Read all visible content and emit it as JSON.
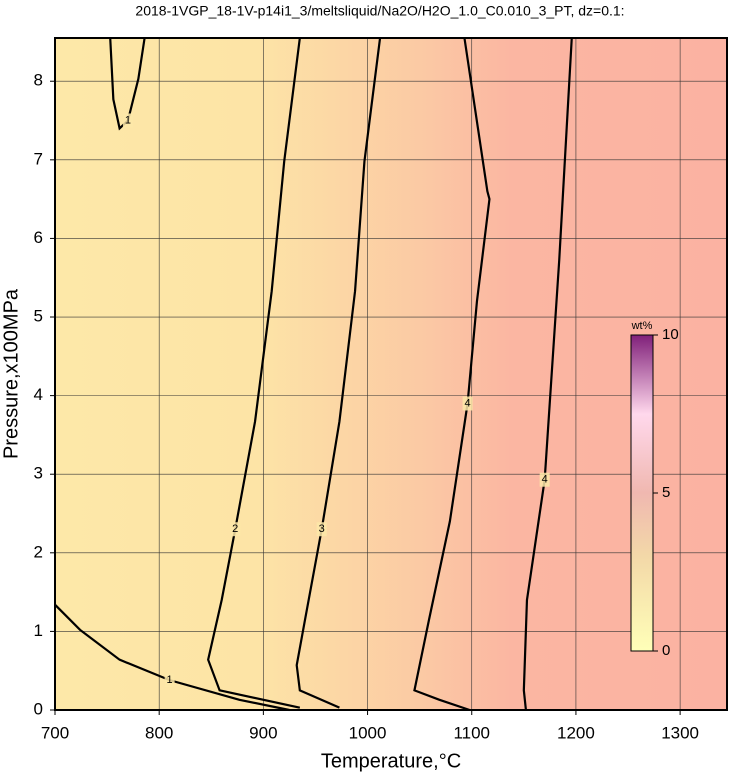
{
  "chart_data": {
    "type": "contour",
    "title": "2018-1VGP_18-1V-p14i1_3/meltsliquid/Na2O/H2O_1.0_C0.010_3_PT, dz=0.1:",
    "x_label": "Temperature,°C",
    "y_label": "Pressure,x100MPa",
    "xlim": [
      700,
      1345
    ],
    "ylim": [
      0,
      8.55
    ],
    "xticks": [
      700,
      800,
      900,
      1000,
      1100,
      1200,
      1300
    ],
    "yticks": [
      0,
      1,
      2,
      3,
      4,
      5,
      6,
      7,
      8
    ],
    "grid": true,
    "series": [
      {
        "name": "1",
        "color": "#000000",
        "x": [
          700,
          724,
          762,
          810,
          877,
          925
        ],
        "values": [
          1.34,
          1.02,
          0.64,
          0.38,
          0.13,
          0
        ]
      },
      {
        "name": "1",
        "color": "#000000",
        "x": [
          753,
          756,
          762,
          770,
          780,
          786
        ],
        "values": [
          8.55,
          7.77,
          7.4,
          7.5,
          8.03,
          8.55
        ]
      },
      {
        "name": "2",
        "color": "#000000",
        "x": [
          935,
          858,
          847,
          860,
          873,
          892,
          908,
          920,
          935
        ],
        "values": [
          0.03,
          0.25,
          0.64,
          1.4,
          2.3,
          3.67,
          5.33,
          6.98,
          8.55
        ]
      },
      {
        "name": "3",
        "color": "#000000",
        "x": [
          973,
          935,
          932,
          940,
          956,
          973,
          988,
          997,
          1012
        ],
        "values": [
          0.03,
          0.25,
          0.57,
          1.15,
          2.3,
          3.67,
          5.33,
          6.98,
          8.55
        ]
      },
      {
        "name": "4",
        "color": "#000000",
        "x": [
          1098,
          1069,
          1045,
          1059,
          1079,
          1096,
          1105,
          1117,
          1115,
          1093
        ],
        "values": [
          0,
          0.13,
          0.25,
          1.15,
          2.4,
          3.9,
          5.2,
          6.5,
          6.6,
          8.55
        ]
      },
      {
        "name": "4",
        "color": "#000000",
        "x": [
          1152,
          1150,
          1153,
          1170,
          1184,
          1196
        ],
        "values": [
          0,
          0.25,
          1.4,
          2.93,
          5.73,
          8.55
        ]
      }
    ],
    "colorbar": {
      "label": "wt%",
      "lim": [
        0,
        10
      ],
      "ticks": [
        0,
        5,
        10
      ]
    }
  }
}
